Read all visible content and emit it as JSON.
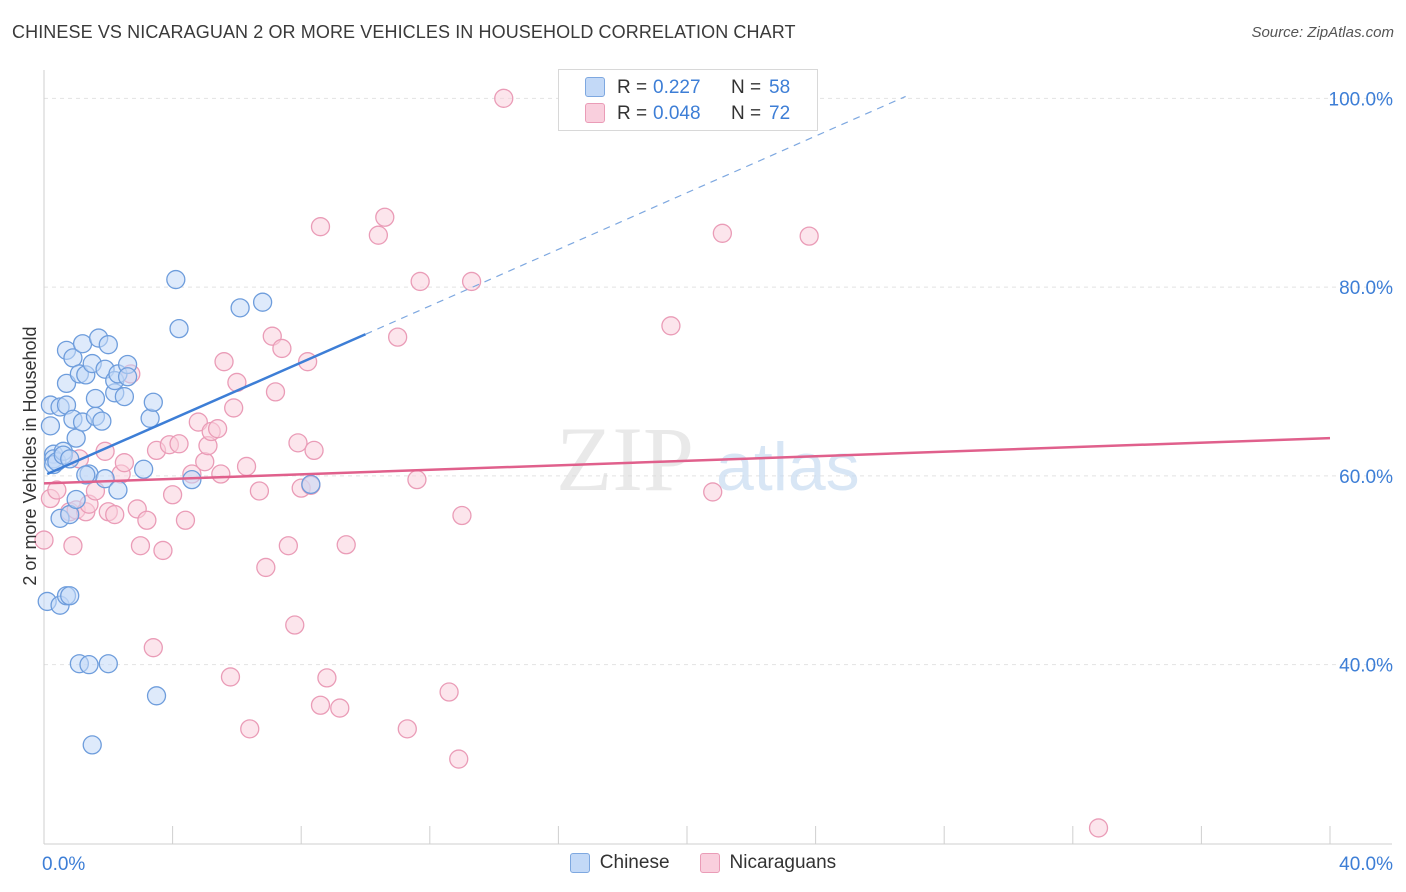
{
  "title": "CHINESE VS NICARAGUAN 2 OR MORE VEHICLES IN HOUSEHOLD CORRELATION CHART",
  "source": "Source: ZipAtlas.com",
  "watermark": {
    "zip": "ZIP",
    "atlas": "atlas"
  },
  "colors": {
    "blue": "#3d7ed6",
    "pink": "#e0608c",
    "blue_fill": "#c3d9f7",
    "pink_fill": "#f9cfdd"
  },
  "stats": {
    "blue": {
      "r_label": "R =",
      "r_value": "0.227",
      "n_label": "N =",
      "n_value": "58"
    },
    "pink": {
      "r_label": "R =",
      "r_value": "0.048",
      "n_label": "N =",
      "n_value": "72"
    }
  },
  "legend": {
    "series1": "Chinese",
    "series2": "Nicaraguans"
  },
  "chart_data": {
    "type": "scatter",
    "title": "CHINESE VS NICARAGUAN 2 OR MORE VEHICLES IN HOUSEHOLD CORRELATION CHART",
    "xlabel": "",
    "ylabel": "2 or more Vehicles in Household",
    "xlim": [
      0,
      40
    ],
    "ylim": [
      21,
      103
    ],
    "x_tick_labels": {
      "left": "0.0%",
      "right": "40.0%"
    },
    "y_ticks": [
      {
        "value": 100,
        "label": "100.0%"
      },
      {
        "value": 80,
        "label": "80.0%"
      },
      {
        "value": 60,
        "label": "60.0%"
      },
      {
        "value": 40,
        "label": "40.0%"
      }
    ],
    "series": [
      {
        "name": "Chinese",
        "color": "#3d7ed6",
        "trend": {
          "x0": 0.1,
          "y0": 60.2,
          "x1": 10.0,
          "y1": 75.0,
          "dash_to_x": 26.8,
          "dash_to_y": 100.2
        },
        "points": [
          [
            0.1,
            46.7
          ],
          [
            0.2,
            67.5
          ],
          [
            0.2,
            65.3
          ],
          [
            0.3,
            62.3
          ],
          [
            0.3,
            61.8
          ],
          [
            0.3,
            61.2
          ],
          [
            0.4,
            61.5
          ],
          [
            0.5,
            67.3
          ],
          [
            0.5,
            55.5
          ],
          [
            0.5,
            46.3
          ],
          [
            0.6,
            62.6
          ],
          [
            0.6,
            62.2
          ],
          [
            0.7,
            73.3
          ],
          [
            0.7,
            69.8
          ],
          [
            0.7,
            67.5
          ],
          [
            0.7,
            47.3
          ],
          [
            0.8,
            47.3
          ],
          [
            0.8,
            61.8
          ],
          [
            0.8,
            55.9
          ],
          [
            0.9,
            66.0
          ],
          [
            0.9,
            72.5
          ],
          [
            1.0,
            64.0
          ],
          [
            1.0,
            57.5
          ],
          [
            1.1,
            70.8
          ],
          [
            1.1,
            40.1
          ],
          [
            1.2,
            74.0
          ],
          [
            1.2,
            65.7
          ],
          [
            1.3,
            70.7
          ],
          [
            1.4,
            60.2
          ],
          [
            1.4,
            40.0
          ],
          [
            1.5,
            71.9
          ],
          [
            1.5,
            31.5
          ],
          [
            1.6,
            68.2
          ],
          [
            1.6,
            66.3
          ],
          [
            1.7,
            74.6
          ],
          [
            1.8,
            65.8
          ],
          [
            1.9,
            71.3
          ],
          [
            1.9,
            59.7
          ],
          [
            2.0,
            73.9
          ],
          [
            2.0,
            40.1
          ],
          [
            2.2,
            68.8
          ],
          [
            2.2,
            70.1
          ],
          [
            2.3,
            70.8
          ],
          [
            2.3,
            58.5
          ],
          [
            2.5,
            68.4
          ],
          [
            2.6,
            71.8
          ],
          [
            3.1,
            60.7
          ],
          [
            3.3,
            66.1
          ],
          [
            3.4,
            67.8
          ],
          [
            3.5,
            36.7
          ],
          [
            4.1,
            80.8
          ],
          [
            4.2,
            75.6
          ],
          [
            4.6,
            59.6
          ],
          [
            6.1,
            77.8
          ],
          [
            6.8,
            78.4
          ],
          [
            8.3,
            59.1
          ],
          [
            1.3,
            60.1
          ],
          [
            2.6,
            70.5
          ]
        ]
      },
      {
        "name": "Nicaraguans",
        "color": "#e0608c",
        "trend": {
          "x0": 0.0,
          "y0": 59.2,
          "x1": 40.0,
          "y1": 64.0
        },
        "points": [
          [
            0.0,
            53.2
          ],
          [
            0.2,
            57.6
          ],
          [
            0.4,
            58.5
          ],
          [
            0.8,
            56.2
          ],
          [
            0.9,
            52.6
          ],
          [
            1.0,
            56.4
          ],
          [
            1.1,
            61.8
          ],
          [
            1.3,
            56.2
          ],
          [
            1.4,
            57.0
          ],
          [
            1.6,
            58.4
          ],
          [
            1.9,
            62.6
          ],
          [
            2.0,
            56.2
          ],
          [
            2.2,
            55.9
          ],
          [
            2.4,
            60.2
          ],
          [
            2.5,
            61.4
          ],
          [
            2.7,
            70.8
          ],
          [
            2.9,
            56.5
          ],
          [
            3.0,
            52.6
          ],
          [
            3.2,
            55.3
          ],
          [
            3.4,
            41.8
          ],
          [
            3.5,
            62.7
          ],
          [
            3.7,
            52.1
          ],
          [
            3.9,
            63.3
          ],
          [
            4.0,
            58.0
          ],
          [
            4.2,
            63.4
          ],
          [
            4.4,
            55.3
          ],
          [
            4.6,
            60.2
          ],
          [
            4.8,
            65.7
          ],
          [
            5.0,
            61.5
          ],
          [
            5.1,
            63.2
          ],
          [
            5.2,
            64.7
          ],
          [
            5.4,
            65.0
          ],
          [
            5.5,
            60.2
          ],
          [
            5.6,
            72.1
          ],
          [
            5.8,
            38.7
          ],
          [
            5.9,
            67.2
          ],
          [
            6.0,
            69.9
          ],
          [
            6.3,
            61.0
          ],
          [
            6.4,
            33.2
          ],
          [
            6.7,
            58.4
          ],
          [
            6.9,
            50.3
          ],
          [
            7.1,
            74.8
          ],
          [
            7.2,
            68.9
          ],
          [
            7.4,
            73.5
          ],
          [
            7.6,
            52.6
          ],
          [
            7.8,
            44.2
          ],
          [
            7.9,
            63.5
          ],
          [
            8.0,
            58.7
          ],
          [
            8.2,
            72.1
          ],
          [
            8.4,
            62.7
          ],
          [
            8.6,
            86.4
          ],
          [
            8.6,
            35.7
          ],
          [
            8.8,
            38.6
          ],
          [
            9.2,
            35.4
          ],
          [
            9.4,
            52.7
          ],
          [
            10.4,
            85.5
          ],
          [
            10.6,
            87.4
          ],
          [
            11.0,
            74.7
          ],
          [
            11.3,
            33.2
          ],
          [
            11.6,
            59.6
          ],
          [
            11.7,
            80.6
          ],
          [
            12.6,
            37.1
          ],
          [
            12.9,
            30.0
          ],
          [
            13.0,
            55.8
          ],
          [
            13.3,
            80.6
          ],
          [
            14.3,
            100.0
          ],
          [
            19.5,
            75.9
          ],
          [
            20.8,
            58.3
          ],
          [
            21.1,
            85.7
          ],
          [
            23.8,
            85.4
          ],
          [
            32.8,
            22.7
          ],
          [
            8.3,
            59.0
          ]
        ]
      }
    ]
  }
}
